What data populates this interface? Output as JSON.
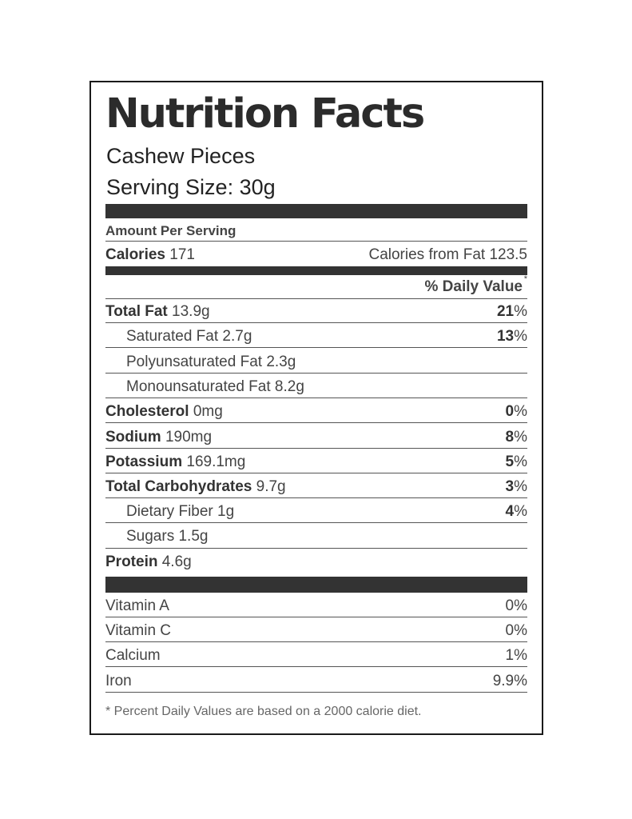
{
  "title": "Nutrition Facts",
  "product_name": "Cashew Pieces",
  "serving_size": "Serving Size: 30g",
  "amount_per_serving": "Amount Per Serving",
  "calories": {
    "label": "Calories",
    "value": "171",
    "from_fat": "Calories from Fat 123.5"
  },
  "daily_value_header": "% Daily Value",
  "asterisk": "*",
  "nutrients": [
    {
      "label": "Total Fat",
      "amount": "13.9g",
      "dv": "21",
      "pct": "%"
    },
    {
      "label": "Saturated Fat",
      "amount": "2.7g",
      "dv": "13",
      "pct": "%"
    },
    {
      "label": "Polyunsaturated Fat",
      "amount": "2.3g"
    },
    {
      "label": "Monounsaturated Fat",
      "amount": "8.2g"
    },
    {
      "label": "Cholesterol",
      "amount": "0mg",
      "dv": "0",
      "pct": "%"
    },
    {
      "label": "Sodium",
      "amount": "190mg",
      "dv": "8",
      "pct": "%"
    },
    {
      "label": "Potassium",
      "amount": "169.1mg",
      "dv": "5",
      "pct": "%"
    },
    {
      "label": "Total Carbohydrates",
      "amount": "9.7g",
      "dv": "3",
      "pct": "%"
    },
    {
      "label": "Dietary Fiber",
      "amount": "1g",
      "dv": "4",
      "pct": "%"
    },
    {
      "label": "Sugars",
      "amount": "1.5g"
    },
    {
      "label": "Protein",
      "amount": "4.6g"
    }
  ],
  "vitamins": [
    {
      "label": "Vitamin A",
      "value": "0%"
    },
    {
      "label": "Vitamin C",
      "value": "0%"
    },
    {
      "label": "Calcium",
      "value": "1%"
    },
    {
      "label": "Iron",
      "value": "9.9%"
    }
  ],
  "footnote": "* Percent Daily Values are based on a 2000 calorie diet."
}
